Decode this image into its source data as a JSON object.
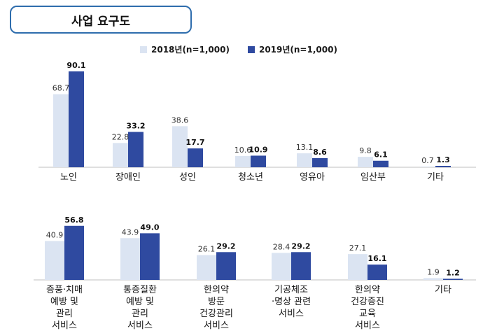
{
  "page_title": "사업 요구도",
  "colors": {
    "s2018": "#dbe4f2",
    "s2019": "#2f4aa0",
    "axis": "#bfbfbf",
    "frame": "#2e6dad"
  },
  "legend": [
    {
      "label": "2018년(n=1,000)",
      "color": "#dbe4f2"
    },
    {
      "label": "2019년(n=1,000)",
      "color": "#2f4aa0"
    }
  ],
  "chart_data": [
    {
      "type": "bar",
      "categories": [
        "노인",
        "장애인",
        "성인",
        "청소년",
        "영유아",
        "임산부",
        "기타"
      ],
      "series": [
        {
          "name": "2018년(n=1,000)",
          "values": [
            68.7,
            22.8,
            38.6,
            10.6,
            13.1,
            9.8,
            0.7
          ]
        },
        {
          "name": "2019년(n=1,000)",
          "values": [
            90.1,
            33.2,
            17.7,
            10.9,
            8.6,
            6.1,
            1.3
          ]
        }
      ],
      "ylim": [
        0,
        100
      ],
      "grid": false,
      "legend": "top"
    },
    {
      "type": "bar",
      "categories": [
        [
          "증풍·치매",
          "예방 및",
          "관리",
          "서비스"
        ],
        [
          "통증질환",
          "예방 및",
          "관리",
          "서비스"
        ],
        [
          "한의약",
          "방문",
          "건강관리",
          "서비스"
        ],
        [
          "기공체조",
          "·명상 관련",
          "서비스"
        ],
        [
          "한의약",
          "건강증진",
          "교육",
          "서비스"
        ],
        [
          "기타"
        ]
      ],
      "series": [
        {
          "name": "2018년(n=1,000)",
          "values": [
            40.9,
            43.9,
            26.1,
            28.4,
            27.1,
            1.9
          ]
        },
        {
          "name": "2019년(n=1,000)",
          "values": [
            56.8,
            49.0,
            29.2,
            29.2,
            16.1,
            1.2
          ]
        }
      ],
      "ylim": [
        0,
        100
      ],
      "grid": false
    }
  ]
}
